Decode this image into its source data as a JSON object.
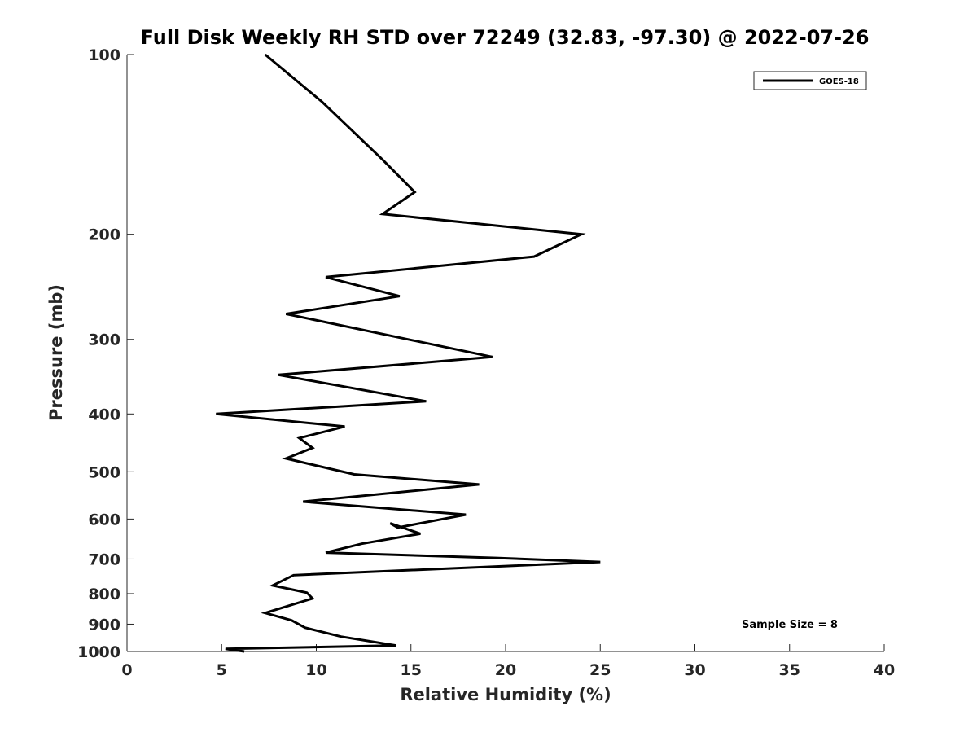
{
  "chart_data": {
    "type": "line",
    "title": "Full Disk Weekly RH STD over 72249 (32.83, -97.30) @ 2022-07-26",
    "xlabel": "Relative Humidity (%)",
    "ylabel": "Pressure (mb)",
    "xlim": [
      0,
      40
    ],
    "ylim": [
      100,
      1000
    ],
    "y_scale": "log",
    "y_reversed": true,
    "grid": false,
    "legend_position": "top-right",
    "x_ticks": [
      "0",
      "5",
      "10",
      "15",
      "20",
      "25",
      "30",
      "35",
      "40"
    ],
    "y_ticks": [
      "100",
      "200",
      "300",
      "400",
      "500",
      "600",
      "700",
      "800",
      "900",
      "1000"
    ],
    "series": [
      {
        "name": "GOES-18",
        "color": "#000000",
        "x": [
          7.3,
          10.3,
          13.5,
          15.2,
          13.5,
          24.0,
          21.5,
          10.5,
          14.4,
          8.4,
          19.3,
          8.0,
          15.8,
          4.7,
          11.5,
          9.1,
          9.8,
          8.4,
          12.0,
          18.6,
          9.3,
          17.9,
          14.3,
          13.9,
          15.5,
          12.4,
          10.5,
          19.5,
          25.0,
          8.8,
          7.7,
          9.5,
          9.8,
          8.3,
          7.3,
          8.7,
          9.4,
          11.3,
          14.2,
          5.2,
          6.2
        ],
        "y": [
          100,
          120,
          150,
          170,
          185,
          200,
          218,
          236,
          254,
          272,
          321,
          344,
          381,
          400,
          420,
          439,
          456,
          475,
          505,
          525,
          561,
          590,
          620,
          610,
          635,
          660,
          683,
          697,
          708,
          745,
          775,
          797,
          815,
          843,
          862,
          887,
          912,
          944,
          977,
          990,
          1000
        ]
      }
    ],
    "annotations": [
      "Sample Size = 8"
    ]
  }
}
